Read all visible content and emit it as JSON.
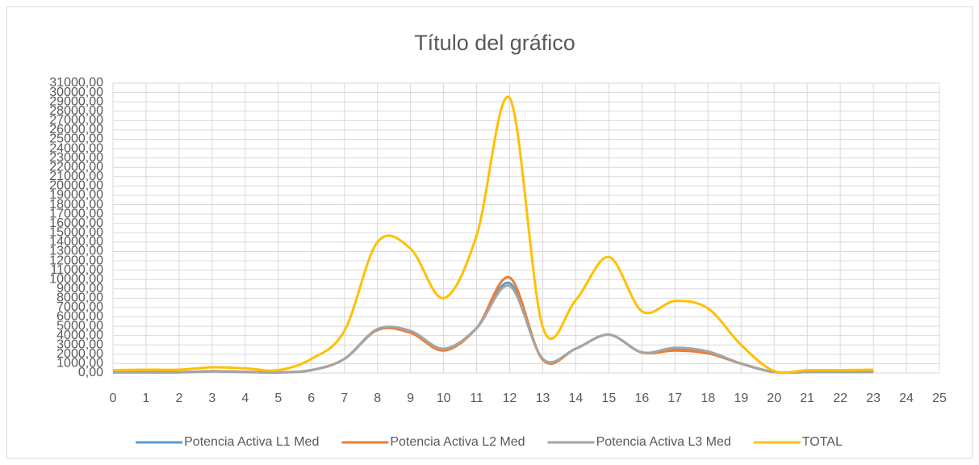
{
  "chart_data": {
    "type": "line",
    "title": "Título del gráfico",
    "x": [
      0,
      1,
      2,
      3,
      4,
      5,
      6,
      7,
      8,
      9,
      10,
      11,
      12,
      13,
      14,
      15,
      16,
      17,
      18,
      19,
      20,
      21,
      22,
      23
    ],
    "series": [
      {
        "name": "Potencia Activa L1 Med",
        "color": "#5b9bd5",
        "values": [
          80,
          80,
          80,
          180,
          120,
          60,
          300,
          1500,
          4600,
          4400,
          2500,
          4800,
          9600,
          1500,
          2600,
          4100,
          2200,
          2500,
          2200,
          1000,
          100,
          100,
          100,
          100
        ]
      },
      {
        "name": "Potencia Activa L2 Med",
        "color": "#ed7d31",
        "values": [
          80,
          80,
          80,
          180,
          120,
          60,
          300,
          1500,
          4600,
          4300,
          2400,
          4800,
          10200,
          1400,
          2600,
          4100,
          2200,
          2400,
          2100,
          1000,
          100,
          100,
          100,
          100
        ]
      },
      {
        "name": "Potencia Activa L3 Med",
        "color": "#a5a5a5",
        "values": [
          60,
          60,
          60,
          150,
          100,
          50,
          300,
          1500,
          4700,
          4500,
          2600,
          4800,
          9300,
          1500,
          2600,
          4100,
          2200,
          2700,
          2300,
          1000,
          100,
          100,
          100,
          100
        ]
      },
      {
        "name": "TOTAL",
        "color": "#ffc000",
        "values": [
          300,
          350,
          350,
          600,
          500,
          300,
          1500,
          4500,
          14000,
          13300,
          8000,
          14700,
          29400,
          4900,
          7800,
          12400,
          6600,
          7700,
          6900,
          3000,
          200,
          300,
          300,
          350
        ]
      }
    ],
    "xlim": [
      0,
      25
    ],
    "xticks": [
      0,
      1,
      2,
      3,
      4,
      5,
      6,
      7,
      8,
      9,
      10,
      11,
      12,
      13,
      14,
      15,
      16,
      17,
      18,
      19,
      20,
      21,
      22,
      23,
      24,
      25
    ],
    "ylim": [
      0,
      31000
    ],
    "yticks": [
      {
        "value": 0,
        "label": "0,00"
      },
      {
        "value": 1000,
        "label": "1000,00"
      },
      {
        "value": 2000,
        "label": "2000,00"
      },
      {
        "value": 3000,
        "label": "3000,00"
      },
      {
        "value": 4000,
        "label": "4000,00"
      },
      {
        "value": 5000,
        "label": "5000,00"
      },
      {
        "value": 6000,
        "label": "6000,00"
      },
      {
        "value": 7000,
        "label": "7000,00"
      },
      {
        "value": 8000,
        "label": "8000,00"
      },
      {
        "value": 9000,
        "label": "9000,00"
      },
      {
        "value": 10000,
        "label": "10000,00"
      },
      {
        "value": 11000,
        "label": "11000,00"
      },
      {
        "value": 12000,
        "label": "12000,00"
      },
      {
        "value": 13000,
        "label": "13000,00"
      },
      {
        "value": 14000,
        "label": "14000,00"
      },
      {
        "value": 15000,
        "label": "15000,00"
      },
      {
        "value": 16000,
        "label": "16000,00"
      },
      {
        "value": 17000,
        "label": "17000,00"
      },
      {
        "value": 18000,
        "label": "18000,00"
      },
      {
        "value": 19000,
        "label": "19000,00"
      },
      {
        "value": 20000,
        "label": "20000,00"
      },
      {
        "value": 21000,
        "label": "21000,00"
      },
      {
        "value": 22000,
        "label": "22000,00"
      },
      {
        "value": 23000,
        "label": "23000,00"
      },
      {
        "value": 24000,
        "label": "24000,00"
      },
      {
        "value": 25000,
        "label": "25000,00"
      },
      {
        "value": 26000,
        "label": "26000,00"
      },
      {
        "value": 27000,
        "label": "27000,00"
      },
      {
        "value": 28000,
        "label": "28000,00"
      },
      {
        "value": 29000,
        "label": "29000,00"
      },
      {
        "value": 30000,
        "label": "30000,00"
      },
      {
        "value": 31000,
        "label": "31000,00"
      }
    ],
    "grid": true,
    "legend": "bottom"
  }
}
